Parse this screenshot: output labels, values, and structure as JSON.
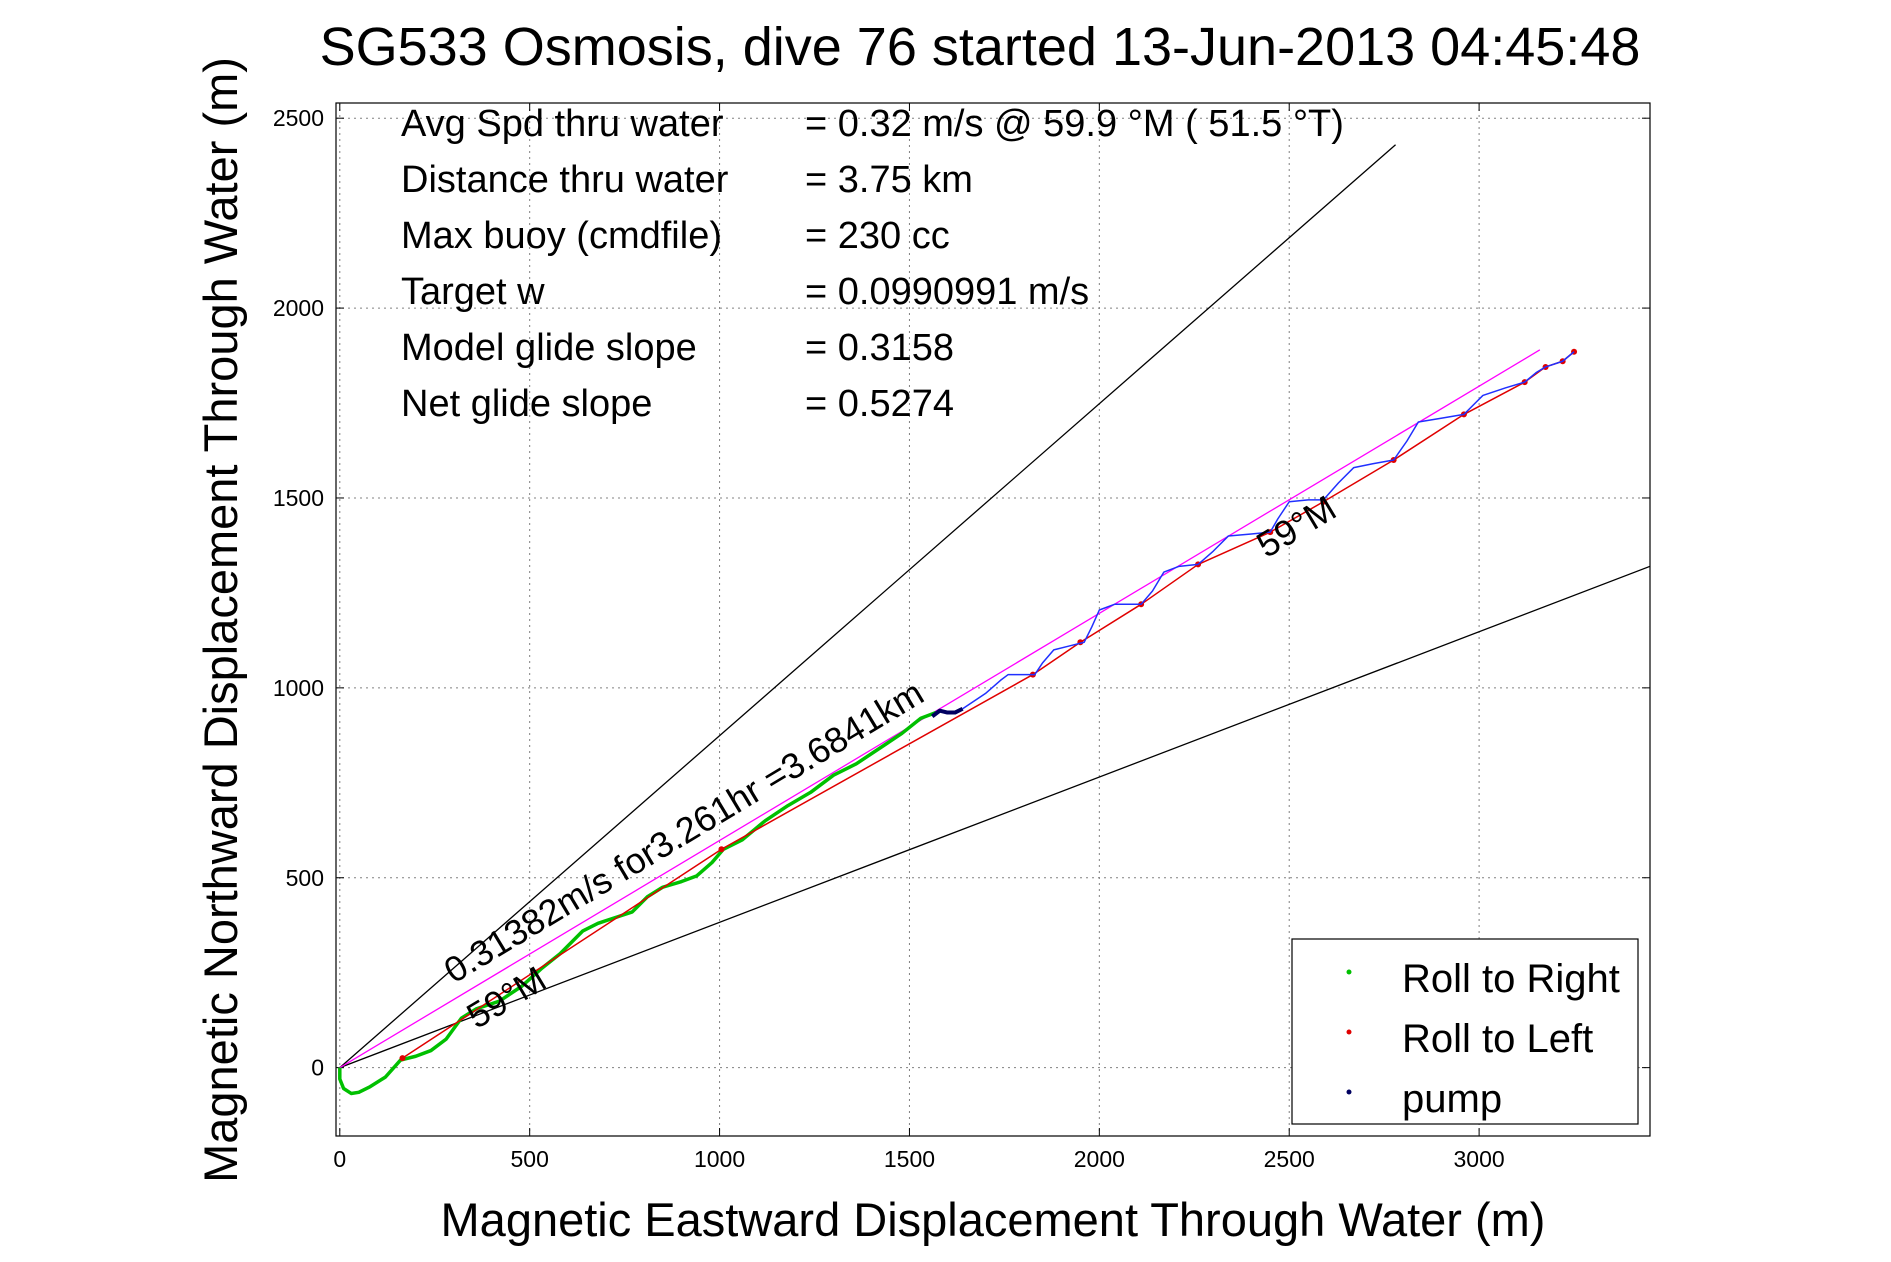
{
  "chart_data": {
    "type": "line",
    "title": "SG533 Osmosis, dive 76 started 13-Jun-2013 04:45:48",
    "xlabel": "Magnetic Eastward Displacement Through Water (m)",
    "ylabel": "Magnetic Northward Displacement Through Water (m)",
    "xlim": [
      -10,
      3450
    ],
    "ylim": [
      -180,
      2540
    ],
    "xticks": [
      0,
      500,
      1000,
      1500,
      2000,
      2500,
      3000
    ],
    "yticks": [
      0,
      500,
      1000,
      1500,
      2000,
      2500
    ],
    "xtick_labels": [
      "0",
      "500",
      "1000",
      "1500",
      "2000",
      "2500",
      "3000"
    ],
    "ytick_labels": [
      "0",
      "500",
      "1000",
      "1500",
      "2000",
      "2500"
    ],
    "grid": true,
    "legend_position": "bottom-right",
    "legend": [
      {
        "label": "Roll to Right",
        "color": "#00c000"
      },
      {
        "label": "Roll to Left",
        "color": "#e00000"
      },
      {
        "label": "pump",
        "color": "#000060"
      }
    ],
    "info_lines": [
      {
        "label": "Avg Spd thru water",
        "value": "=  0.32 m/s @  59.9 °M ( 51.5 °T)"
      },
      {
        "label": "Distance thru water",
        "value": "=  3.75 km"
      },
      {
        "label": "Max buoy (cmdfile)",
        "value": "= 230 cc"
      },
      {
        "label": "Target w",
        "value": "= 0.0990991 m/s"
      },
      {
        "label": "Model glide slope",
        "value": "= 0.3158"
      },
      {
        "label": "Net glide slope",
        "value": "= 0.5274"
      }
    ],
    "annotations": [
      {
        "text": "0.31382m/s for3.261hr =3.6841km",
        "x": 300,
        "y": 220,
        "angle_deg": 31
      },
      {
        "text": "59°M",
        "x": 360,
        "y": 100,
        "angle_deg": 31
      },
      {
        "text": "59°M",
        "x": 2440,
        "y": 1340,
        "angle_deg": 31
      }
    ],
    "reference_lines": [
      {
        "name": "upper envelope",
        "color": "#000000",
        "points": [
          [
            0,
            0
          ],
          [
            2780,
            2430
          ]
        ]
      },
      {
        "name": "lower envelope",
        "color": "#000000",
        "points": [
          [
            0,
            0
          ],
          [
            3450,
            1320
          ]
        ]
      },
      {
        "name": "heading 59°M",
        "color": "#ff00ff",
        "points": [
          [
            0,
            0
          ],
          [
            3160,
            1890
          ]
        ]
      }
    ],
    "series": [
      {
        "label": "Roll to Right",
        "color": "#00c000",
        "points": [
          [
            0,
            0
          ],
          [
            0,
            -30
          ],
          [
            10,
            -55
          ],
          [
            30,
            -68
          ],
          [
            50,
            -65
          ],
          [
            80,
            -50
          ],
          [
            120,
            -25
          ],
          [
            160,
            20
          ],
          [
            200,
            30
          ],
          [
            240,
            45
          ],
          [
            280,
            75
          ],
          [
            320,
            130
          ],
          [
            360,
            155
          ],
          [
            420,
            175
          ],
          [
            480,
            215
          ],
          [
            530,
            260
          ],
          [
            580,
            300
          ],
          [
            640,
            360
          ],
          [
            680,
            380
          ],
          [
            740,
            400
          ],
          [
            770,
            410
          ],
          [
            810,
            450
          ],
          [
            850,
            475
          ],
          [
            900,
            490
          ],
          [
            940,
            505
          ],
          [
            980,
            540
          ],
          [
            1010,
            575
          ],
          [
            1060,
            600
          ],
          [
            1120,
            650
          ],
          [
            1180,
            690
          ],
          [
            1240,
            725
          ],
          [
            1300,
            770
          ],
          [
            1360,
            800
          ],
          [
            1420,
            840
          ],
          [
            1480,
            880
          ],
          [
            1530,
            920
          ],
          [
            1570,
            935
          ]
        ]
      },
      {
        "label": "Roll to Left",
        "color": "#e00000",
        "points": [
          [
            165,
            25
          ],
          [
            1005,
            575
          ],
          [
            1825,
            1035
          ],
          [
            1950,
            1120
          ],
          [
            2110,
            1220
          ],
          [
            2260,
            1325
          ],
          [
            2450,
            1410
          ],
          [
            2590,
            1490
          ],
          [
            2775,
            1600
          ],
          [
            2960,
            1720
          ],
          [
            3120,
            1805
          ],
          [
            3175,
            1845
          ],
          [
            3220,
            1860
          ],
          [
            3250,
            1885
          ]
        ]
      },
      {
        "label": "pump",
        "color": "#000060",
        "points": [
          [
            1560,
            925
          ],
          [
            1580,
            940
          ],
          [
            1600,
            935
          ],
          [
            1620,
            935
          ],
          [
            1640,
            945
          ]
        ]
      },
      {
        "label": "track",
        "color": "#2030ff",
        "points": [
          [
            1640,
            945
          ],
          [
            1700,
            985
          ],
          [
            1740,
            1020
          ],
          [
            1760,
            1035
          ],
          [
            1800,
            1035
          ],
          [
            1830,
            1035
          ],
          [
            1850,
            1065
          ],
          [
            1880,
            1100
          ],
          [
            1920,
            1110
          ],
          [
            1960,
            1120
          ],
          [
            1980,
            1160
          ],
          [
            2000,
            1205
          ],
          [
            2040,
            1220
          ],
          [
            2110,
            1220
          ],
          [
            2140,
            1255
          ],
          [
            2170,
            1305
          ],
          [
            2210,
            1320
          ],
          [
            2260,
            1325
          ],
          [
            2300,
            1360
          ],
          [
            2340,
            1400
          ],
          [
            2400,
            1405
          ],
          [
            2450,
            1410
          ],
          [
            2470,
            1445
          ],
          [
            2500,
            1490
          ],
          [
            2550,
            1495
          ],
          [
            2590,
            1495
          ],
          [
            2630,
            1540
          ],
          [
            2670,
            1580
          ],
          [
            2720,
            1590
          ],
          [
            2775,
            1600
          ],
          [
            2810,
            1650
          ],
          [
            2840,
            1700
          ],
          [
            2900,
            1710
          ],
          [
            2960,
            1720
          ],
          [
            2990,
            1750
          ],
          [
            3010,
            1770
          ],
          [
            3070,
            1790
          ],
          [
            3120,
            1805
          ],
          [
            3150,
            1830
          ],
          [
            3175,
            1845
          ],
          [
            3220,
            1860
          ],
          [
            3250,
            1885
          ]
        ]
      }
    ]
  }
}
